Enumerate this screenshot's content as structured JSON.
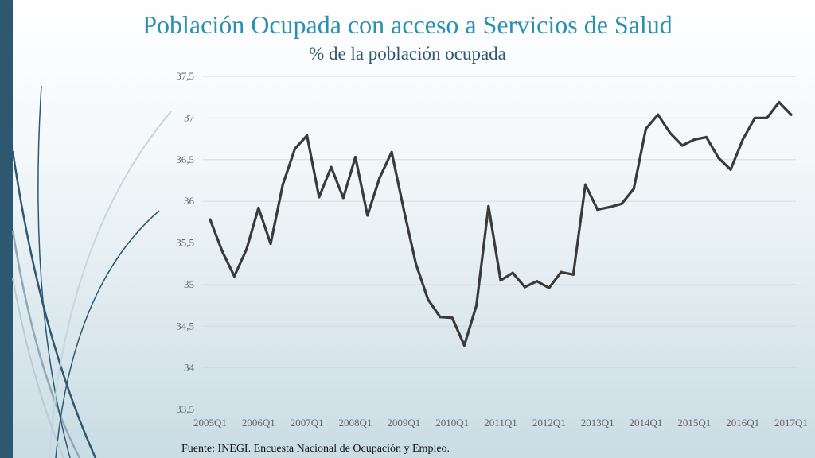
{
  "slide": {
    "title": "Población Ocupada con acceso a Servicios de Salud",
    "subtitle": "% de la población ocupada",
    "source": "Fuente: INEGI. Encuesta Nacional de Ocupación y Empleo."
  },
  "colors": {
    "line": "#3a3a3a",
    "grid": "#d9d9d9",
    "title": "#2a8fb0",
    "subtitle": "#2e5870",
    "accent_bar": "#2e5870"
  },
  "chart_data": {
    "type": "line",
    "title": "Población Ocupada con acceso a Servicios de Salud",
    "subtitle": "% de la población ocupada",
    "xlabel": "",
    "ylabel": "",
    "ylim": [
      33.5,
      37.5
    ],
    "yticks": [
      "33,5",
      "34",
      "34,5",
      "35",
      "35,5",
      "36",
      "36,5",
      "37",
      "37,5"
    ],
    "ytick_values": [
      33.5,
      34,
      34.5,
      35,
      35.5,
      36,
      36.5,
      37,
      37.5
    ],
    "xtick_labels": [
      "2005Q1",
      "2006Q1",
      "2007Q1",
      "2008Q1",
      "2009Q1",
      "2010Q1",
      "2011Q1",
      "2012Q1",
      "2013Q1",
      "2014Q1",
      "2015Q1",
      "2016Q1",
      "2017Q1"
    ],
    "xtick_indices": [
      0,
      4,
      8,
      12,
      16,
      20,
      24,
      28,
      32,
      36,
      40,
      44,
      48
    ],
    "grid": true,
    "legend": "none",
    "series": [
      {
        "name": "Población ocupada con acceso a servicios de salud",
        "values": [
          35.78,
          35.4,
          35.1,
          35.42,
          35.92,
          35.49,
          36.2,
          36.63,
          36.79,
          36.05,
          36.41,
          36.04,
          36.53,
          35.83,
          36.28,
          36.59,
          35.9,
          35.25,
          34.82,
          34.61,
          34.6,
          34.27,
          34.75,
          35.94,
          35.05,
          35.14,
          34.97,
          35.04,
          34.96,
          35.15,
          35.12,
          36.2,
          35.9,
          35.93,
          35.97,
          36.15,
          36.87,
          37.04,
          36.82,
          36.67,
          36.74,
          36.77,
          36.52,
          36.38,
          36.74,
          37.0,
          37.0,
          37.19,
          37.04
        ]
      }
    ]
  }
}
